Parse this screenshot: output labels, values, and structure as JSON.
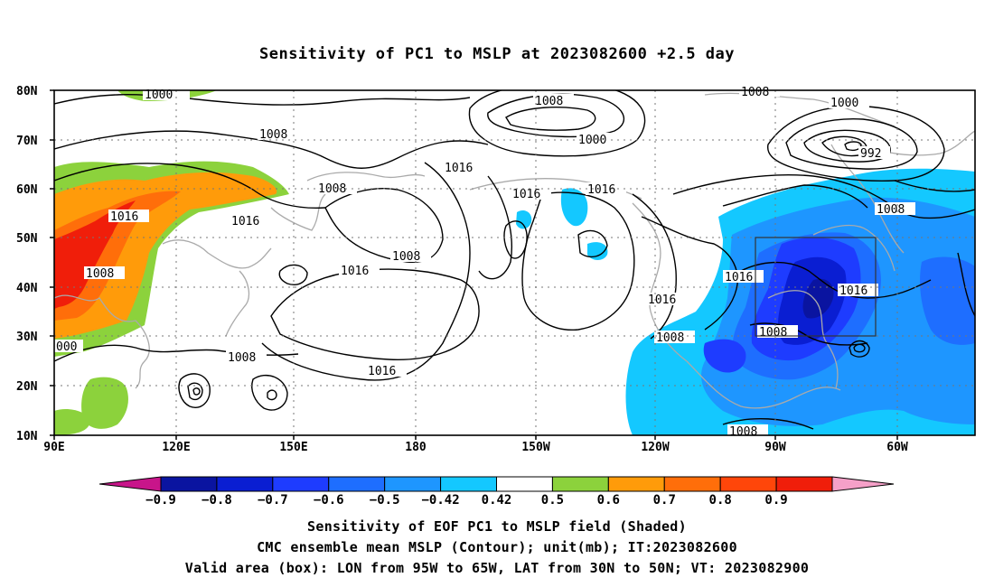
{
  "title": "Sensitivity of PC1 to MSLP at 2023082600 +2.5 day",
  "lat_labels": [
    "80N",
    "70N",
    "60N",
    "50N",
    "40N",
    "30N",
    "20N",
    "10N"
  ],
  "lon_labels": [
    "90E",
    "120E",
    "150E",
    "180",
    "150W",
    "120W",
    "90W",
    "60W"
  ],
  "contour_labels": [
    "1000",
    "1008",
    "1008",
    "1016",
    "1016",
    "1008",
    "1000",
    "1008",
    "1008",
    "1016",
    "1016",
    "1008",
    "1016",
    "1016",
    "1000",
    "992",
    "1008",
    "1016",
    "1016",
    "1008",
    "1016",
    "1008",
    "1008",
    "000"
  ],
  "colorbar": {
    "labels": [
      "-0.9",
      "-0.8",
      "-0.7",
      "-0.6",
      "-0.5",
      "-0.42",
      "0.42",
      "0.5",
      "0.6",
      "0.7",
      "0.8",
      "0.9"
    ],
    "colors": [
      "#c8158a",
      "#0a14a0",
      "#0a1ed2",
      "#1e3cff",
      "#1e6eff",
      "#1e96ff",
      "#14c8ff",
      "#ffffff",
      "#8cd23c",
      "#ff9b0a",
      "#ff6e0a",
      "#ff460a",
      "#f01e0a",
      "#f5a0c8"
    ]
  },
  "captions": {
    "line1": "Sensitivity of EOF PC1 to MSLP field (Shaded)",
    "line2": "CMC ensemble mean MSLP (Contour); unit(mb); IT:2023082600",
    "line3": "Valid area (box): LON from 95W to 65W, LAT from 30N to 50N; VT: 2023082900"
  }
}
